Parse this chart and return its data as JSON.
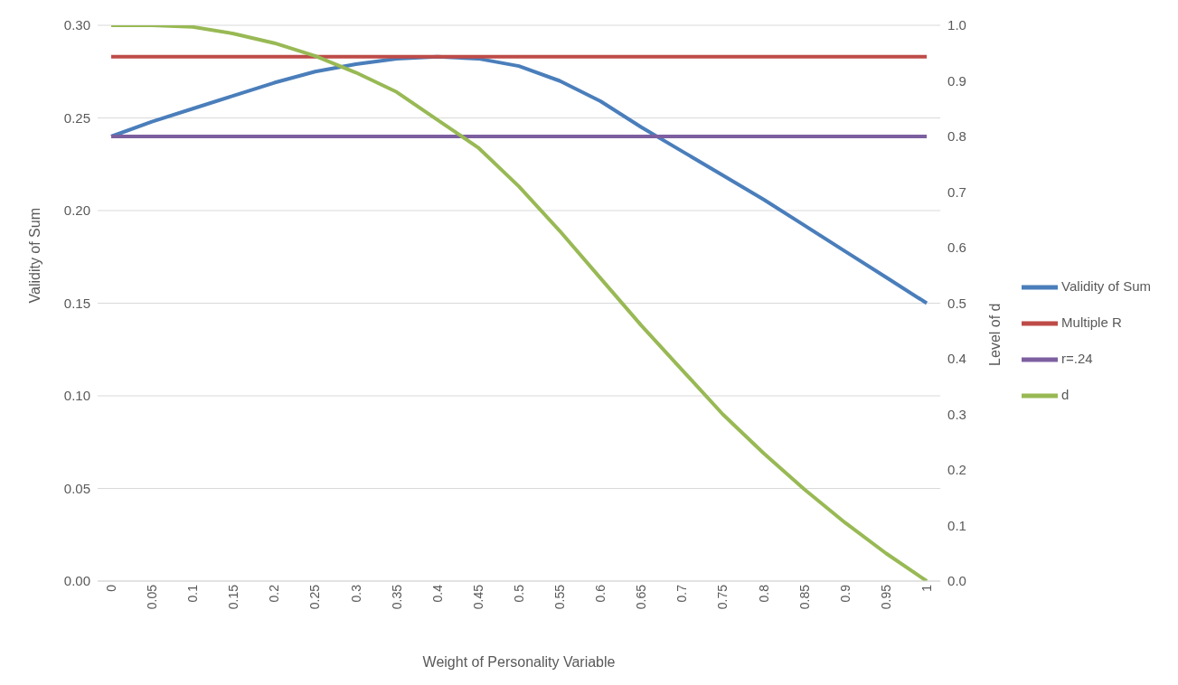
{
  "chart_data": {
    "type": "line",
    "xlabel": "Weight of Personality Variable",
    "ylabel": "Validity of Sum",
    "y2label": "Level of d",
    "categories": [
      "0",
      "0.05",
      "0.1",
      "0.15",
      "0.2",
      "0.25",
      "0.3",
      "0.35",
      "0.4",
      "0.45",
      "0.5",
      "0.55",
      "0.6",
      "0.65",
      "0.7",
      "0.75",
      "0.8",
      "0.85",
      "0.9",
      "0.95",
      "1"
    ],
    "series": [
      {
        "name": "Validity of Sum",
        "color": "#4a7ebb",
        "values": [
          0.24,
          0.248,
          0.255,
          0.262,
          0.269,
          0.275,
          0.279,
          0.282,
          0.283,
          0.282,
          0.278,
          0.27,
          0.259,
          0.245,
          0.232,
          0.219,
          0.206,
          0.192,
          0.178,
          0.164,
          0.15
        ]
      },
      {
        "name": "Multiple R",
        "color": "#be4b48",
        "values": [
          0.283,
          0.283,
          0.283,
          0.283,
          0.283,
          0.283,
          0.283,
          0.283,
          0.283,
          0.283,
          0.283,
          0.283,
          0.283,
          0.283,
          0.283,
          0.283,
          0.283,
          0.283,
          0.283,
          0.283,
          0.283
        ]
      },
      {
        "name": "r=.24",
        "color": "#7d5fa0",
        "values": [
          0.24,
          0.24,
          0.24,
          0.24,
          0.24,
          0.24,
          0.24,
          0.24,
          0.24,
          0.24,
          0.24,
          0.24,
          0.24,
          0.24,
          0.24,
          0.24,
          0.24,
          0.24,
          0.24,
          0.24,
          0.24
        ]
      },
      {
        "name": "d",
        "color": "#98b954",
        "axis": "y2",
        "values": [
          1.0,
          1.0,
          0.997,
          0.985,
          0.968,
          0.945,
          0.915,
          0.88,
          0.83,
          0.78,
          0.71,
          0.63,
          0.545,
          0.46,
          0.38,
          0.3,
          0.23,
          0.165,
          0.105,
          0.05,
          0.0
        ]
      }
    ],
    "ylim": [
      0,
      0.3
    ],
    "yticks": [
      {
        "value": 0,
        "label": "0.00"
      },
      {
        "value": 0.05,
        "label": "0.05"
      },
      {
        "value": 0.1,
        "label": "0.10"
      },
      {
        "value": 0.15,
        "label": "0.15"
      },
      {
        "value": 0.2,
        "label": "0.20"
      },
      {
        "value": 0.25,
        "label": "0.25"
      },
      {
        "value": 0.3,
        "label": "0.30"
      }
    ],
    "y2lim": [
      0,
      1
    ],
    "y2ticks": [
      {
        "value": 0,
        "label": "0.0"
      },
      {
        "value": 0.1,
        "label": "0.1"
      },
      {
        "value": 0.2,
        "label": "0.2"
      },
      {
        "value": 0.3,
        "label": "0.3"
      },
      {
        "value": 0.4,
        "label": "0.4"
      },
      {
        "value": 0.5,
        "label": "0.5"
      },
      {
        "value": 0.6,
        "label": "0.6"
      },
      {
        "value": 0.7,
        "label": "0.7"
      },
      {
        "value": 0.8,
        "label": "0.8"
      },
      {
        "value": 0.9,
        "label": "0.9"
      },
      {
        "value": 1,
        "label": "1.0"
      }
    ],
    "grid": "y",
    "legend": "right",
    "marker": "none",
    "line_style": "solid"
  }
}
